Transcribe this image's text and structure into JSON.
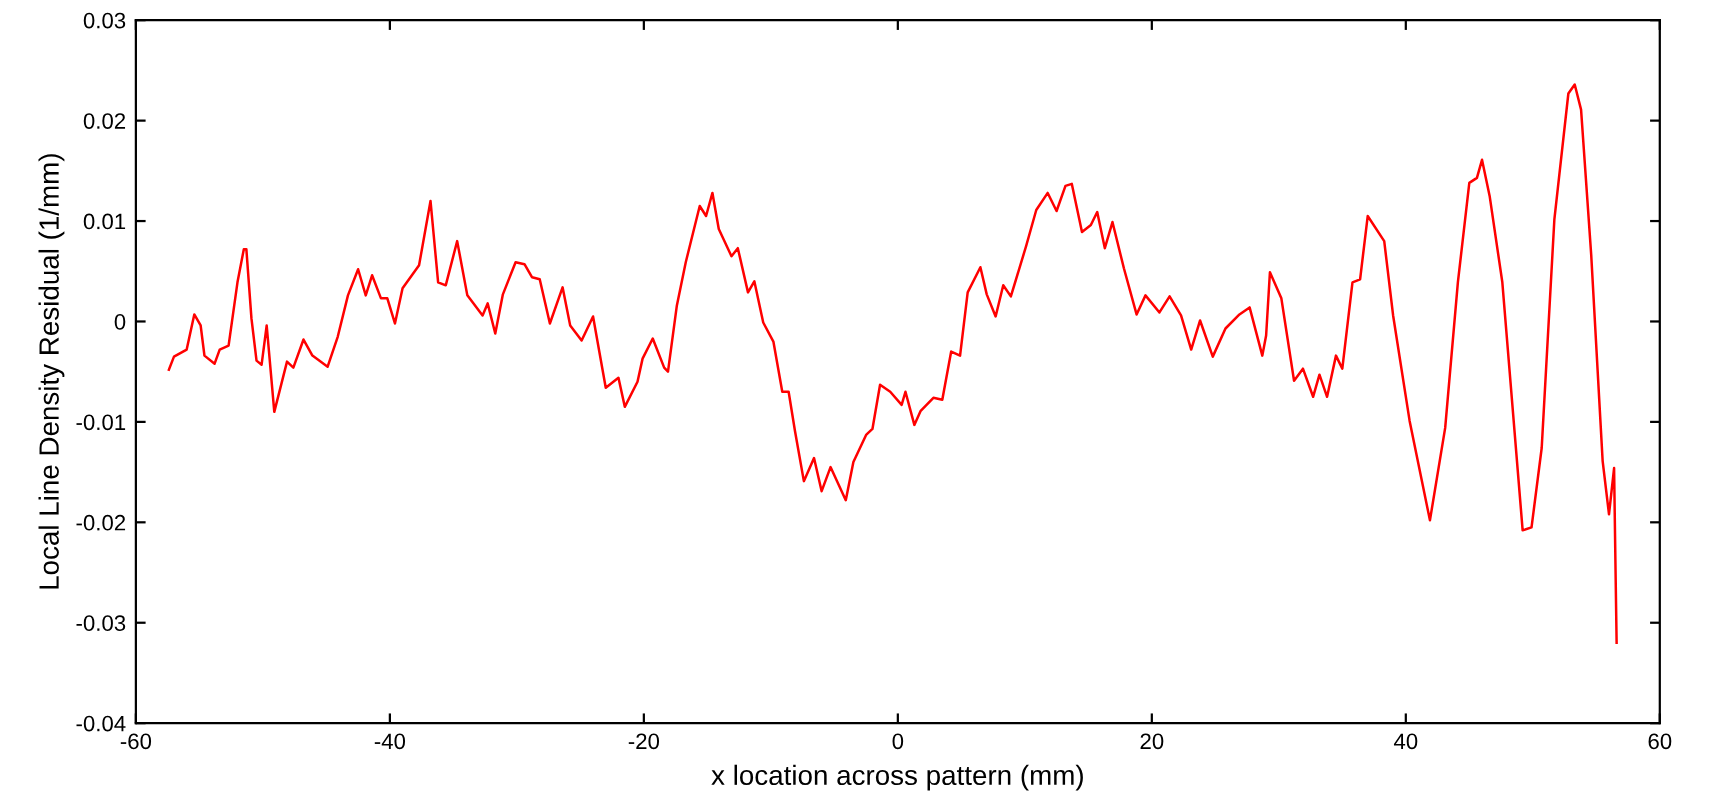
{
  "chart_data": {
    "type": "line",
    "xlabel": "x location across pattern (mm)",
    "ylabel": "Local Line Density Residual (1/mm)",
    "xlim": [
      -60,
      60
    ],
    "xticks": [
      -60,
      -40,
      -20,
      0,
      20,
      40,
      60
    ],
    "ylim": [
      -0.04,
      0.03
    ],
    "yticks": [
      -0.04,
      -0.03,
      -0.02,
      -0.01,
      0,
      0.01,
      0.02,
      0.03
    ],
    "grid": false,
    "marker": "none",
    "line_style": "solid",
    "series": [
      {
        "color": "#ff0000",
        "x": [
          -57.4,
          -57.0,
          -56.0,
          -55.4,
          -54.9,
          -54.6,
          -53.8,
          -53.4,
          -52.7,
          -52.0,
          -51.5,
          -51.3,
          -50.9,
          -50.5,
          -50.1,
          -49.7,
          -49.1,
          -48.1,
          -47.6,
          -46.8,
          -46.1,
          -44.9,
          -44.1,
          -43.3,
          -42.5,
          -41.9,
          -41.4,
          -40.7,
          -40.2,
          -39.6,
          -39.0,
          -37.7,
          -36.8,
          -36.2,
          -35.6,
          -34.7,
          -33.9,
          -32.7,
          -32.3,
          -31.7,
          -31.1,
          -30.1,
          -29.4,
          -28.8,
          -28.2,
          -27.4,
          -26.4,
          -25.8,
          -24.9,
          -24.0,
          -23.0,
          -22.0,
          -21.5,
          -20.5,
          -20.1,
          -19.3,
          -18.4,
          -18.1,
          -17.4,
          -16.7,
          -15.6,
          -15.1,
          -14.6,
          -14.1,
          -13.1,
          -12.6,
          -11.8,
          -11.3,
          -10.6,
          -9.8,
          -9.1,
          -8.6,
          -8.1,
          -7.4,
          -6.6,
          -6.0,
          -5.3,
          -4.1,
          -3.5,
          -2.5,
          -2.0,
          -1.4,
          -0.6,
          0.3,
          0.6,
          1.3,
          1.8,
          2.8,
          3.5,
          4.2,
          4.9,
          5.5,
          6.5,
          7.0,
          7.7,
          8.3,
          8.9,
          10.1,
          10.9,
          11.8,
          12.5,
          13.2,
          13.7,
          14.5,
          15.2,
          15.7,
          16.3,
          16.9,
          17.8,
          18.8,
          19.5,
          20.6,
          21.4,
          22.3,
          23.1,
          23.8,
          24.8,
          25.8,
          26.9,
          27.7,
          28.7,
          29.0,
          29.3,
          30.2,
          31.2,
          31.9,
          32.7,
          33.2,
          33.8,
          34.5,
          35.0,
          35.8,
          36.4,
          37.0,
          38.3,
          39.0,
          40.3,
          41.9,
          43.1,
          44.1,
          45.0,
          45.6,
          46.0,
          46.6,
          47.6,
          49.2,
          49.9,
          50.7,
          51.7,
          52.8,
          53.3,
          53.8,
          54.6,
          55.5,
          56.0,
          56.4,
          56.5,
          56.6
        ],
        "values": [
          -0.0048,
          -0.0035,
          -0.0028,
          0.0007,
          -0.0004,
          -0.0034,
          -0.0042,
          -0.0028,
          -0.0024,
          0.0039,
          0.0072,
          0.0072,
          0.0003,
          -0.0039,
          -0.0043,
          -0.0004,
          -0.009,
          -0.004,
          -0.0046,
          -0.0018,
          -0.0034,
          -0.0045,
          -0.0015,
          0.0026,
          0.0052,
          0.0026,
          0.0046,
          0.0023,
          0.0023,
          -0.0002,
          0.0033,
          0.0056,
          0.012,
          0.0039,
          0.0036,
          0.008,
          0.0026,
          0.0006,
          0.0018,
          -0.0012,
          0.0027,
          0.0059,
          0.0057,
          0.0044,
          0.0042,
          -0.0002,
          0.0034,
          -0.0004,
          -0.0019,
          0.0005,
          -0.0066,
          -0.0056,
          -0.0085,
          -0.006,
          -0.0037,
          -0.0017,
          -0.0046,
          -0.005,
          0.0016,
          0.0059,
          0.0115,
          0.0105,
          0.0128,
          0.0092,
          0.0065,
          0.0073,
          0.0029,
          0.004,
          -0.0001,
          -0.002,
          -0.007,
          -0.007,
          -0.0109,
          -0.0159,
          -0.0136,
          -0.0169,
          -0.0145,
          -0.0178,
          -0.014,
          -0.0113,
          -0.0107,
          -0.0063,
          -0.007,
          -0.0083,
          -0.007,
          -0.0103,
          -0.0089,
          -0.0076,
          -0.0078,
          -0.003,
          -0.0034,
          0.0029,
          0.0054,
          0.0027,
          0.0005,
          0.0036,
          0.0025,
          0.0075,
          0.0111,
          0.0128,
          0.011,
          0.0135,
          0.0137,
          0.0089,
          0.0096,
          0.0109,
          0.0073,
          0.0099,
          0.0053,
          0.0007,
          0.0026,
          0.0009,
          0.0025,
          0.0006,
          -0.0028,
          0.0001,
          -0.0035,
          -0.0007,
          0.0007,
          0.0014,
          -0.0034,
          -0.0014,
          0.0049,
          0.0023,
          -0.0059,
          -0.0047,
          -0.0075,
          -0.0053,
          -0.0075,
          -0.0034,
          -0.0047,
          0.0039,
          0.0042,
          0.0105,
          0.008,
          0.0006,
          -0.0099,
          -0.0198,
          -0.0106,
          0.0039,
          0.0138,
          0.0143,
          0.0161,
          0.0125,
          0.0039,
          -0.0208,
          -0.0205,
          -0.0126,
          0.0102,
          0.0227,
          0.0236,
          0.0211,
          0.0066,
          -0.0139,
          -0.0192,
          -0.0146,
          -0.0235,
          -0.032
        ]
      }
    ]
  }
}
